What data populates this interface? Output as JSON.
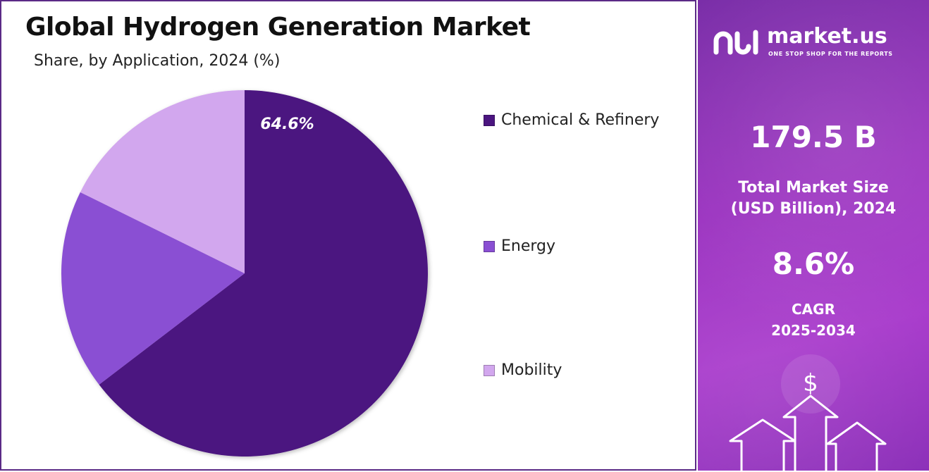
{
  "chart_data": {
    "type": "pie",
    "title": "Global Hydrogen Generation Market",
    "subtitle": "Share, by Application, 2024 (%)",
    "categories": [
      "Chemical & Refinery",
      "Energy",
      "Mobility"
    ],
    "values": [
      64.6,
      17.7,
      17.7
    ],
    "data_labels": [
      "64.6%",
      "",
      ""
    ],
    "colors": [
      "#4b1580",
      "#8a4fd3",
      "#d2a7ee"
    ],
    "legend_position": "right"
  },
  "info": {
    "brand_name": "market.us",
    "brand_tagline": "ONE STOP SHOP FOR THE REPORTS",
    "market_size_value": "179.5 B",
    "market_size_label_line1": "Total Market Size",
    "market_size_label_line2": "(USD Billion), 2024",
    "cagr_value": "8.6%",
    "cagr_label_line1": "CAGR",
    "cagr_label_line2": "2025-2034",
    "currency_symbol": "$"
  },
  "colors": {
    "panel_border": "#5b2a86",
    "panel_gradient_start": "#7a2ea8",
    "panel_gradient_end": "#a93ccc"
  }
}
